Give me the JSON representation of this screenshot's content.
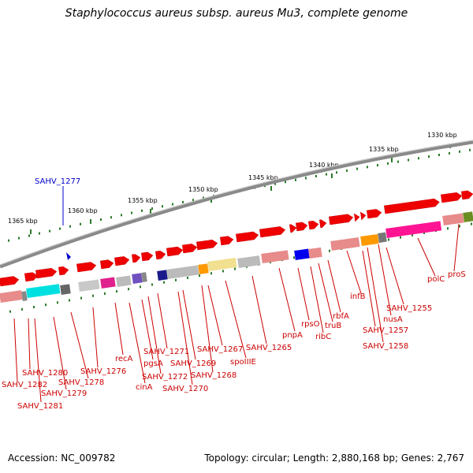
{
  "title": "Staphylococcus aureus subsp. aureus Mu3, complete genome",
  "accession": "Accession: NC_009782",
  "stats": "Topology: circular; Length: 2,880,168 bp; Genes: 2,767",
  "colors": {
    "backbone": "#8a8a8a",
    "gene_arrow": "#ee0000",
    "tick": "#2b7a2b",
    "label_red": "#cc0000",
    "label_blue": "#0000cc"
  },
  "ticks": [
    {
      "label": "1365 kbp"
    },
    {
      "label": "1360 kbp"
    },
    {
      "label": "1355 kbp"
    },
    {
      "label": "1350 kbp"
    },
    {
      "label": "1345 kbp"
    },
    {
      "label": "1340 kbp"
    },
    {
      "label": "1335 kbp"
    },
    {
      "label": "1330 kbp"
    }
  ],
  "gene_labels": [
    {
      "text": "SAHV_1277"
    },
    {
      "text": "SAHV_1280"
    },
    {
      "text": "SAHV_1282"
    },
    {
      "text": "SAHV_1281"
    },
    {
      "text": "SAHV_1279"
    },
    {
      "text": "SAHV_1278"
    },
    {
      "text": "SAHV_1276"
    },
    {
      "text": "recA"
    },
    {
      "text": "cinA"
    },
    {
      "text": "SAHV_1272"
    },
    {
      "text": "pgsA"
    },
    {
      "text": "SAHV_1271"
    },
    {
      "text": "SAHV_1270"
    },
    {
      "text": "SAHV_1269"
    },
    {
      "text": "SAHV_1268"
    },
    {
      "text": "SAHV_1267"
    },
    {
      "text": "spoIIIE"
    },
    {
      "text": "SAHV_1265"
    },
    {
      "text": "pnpA"
    },
    {
      "text": "rpsO"
    },
    {
      "text": "ribC"
    },
    {
      "text": "truB"
    },
    {
      "text": "rbfA"
    },
    {
      "text": "infB"
    },
    {
      "text": "SAHV_1257"
    },
    {
      "text": "SAHV_1258"
    },
    {
      "text": "nusA"
    },
    {
      "text": "SAHV_1255"
    },
    {
      "text": "polC"
    },
    {
      "text": "proS"
    }
  ]
}
